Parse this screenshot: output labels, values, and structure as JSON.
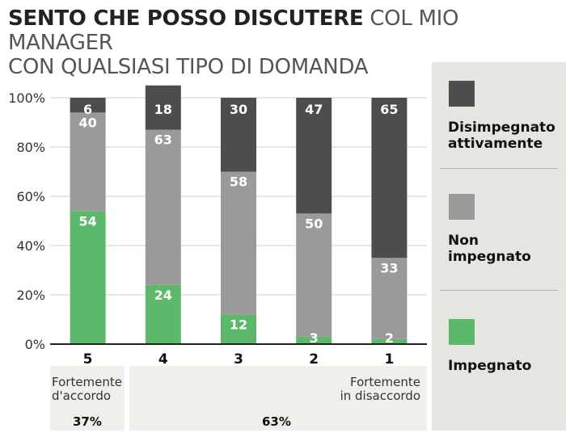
{
  "title": {
    "bold": "SENTO CHE POSSO DISCUTERE",
    "regular_line1": "COL MIO MANAGER",
    "regular_line2": "CON QUALSIASI TIPO DI DOMANDA"
  },
  "legend": {
    "items": [
      {
        "label_line1": "Disimpegnato",
        "label_line2": "attivamente",
        "color": "#4d4d4d"
      },
      {
        "label_line1": "Non",
        "label_line2": "impegnato",
        "color": "#9a9a9a"
      },
      {
        "label_line1": "Impegnato",
        "label_line2": "",
        "color": "#5cb86b"
      }
    ]
  },
  "notes": {
    "left_line1": "Fortemente",
    "left_line2": "d'accordo",
    "right_line1": "Fortemente",
    "right_line2": "in disaccordo",
    "left_total": "37%",
    "right_total": "63%"
  },
  "chart_data": {
    "type": "bar",
    "stacked": true,
    "categories": [
      "5",
      "4",
      "3",
      "2",
      "1"
    ],
    "series": [
      {
        "name": "Impegnato",
        "values": [
          54,
          24,
          12,
          3,
          2
        ],
        "color": "#5cb86b"
      },
      {
        "name": "Non impegnato",
        "values": [
          40,
          63,
          58,
          50,
          33
        ],
        "color": "#9a9a9a"
      },
      {
        "name": "Disimpegnato attivamente",
        "values": [
          6,
          18,
          30,
          47,
          65
        ],
        "color": "#4d4d4d"
      }
    ],
    "ylim": [
      0,
      100
    ],
    "y_ticks": [
      "0%",
      "20%",
      "40%",
      "60%",
      "80%",
      "100%"
    ],
    "grid": true,
    "legend_position": "right"
  }
}
